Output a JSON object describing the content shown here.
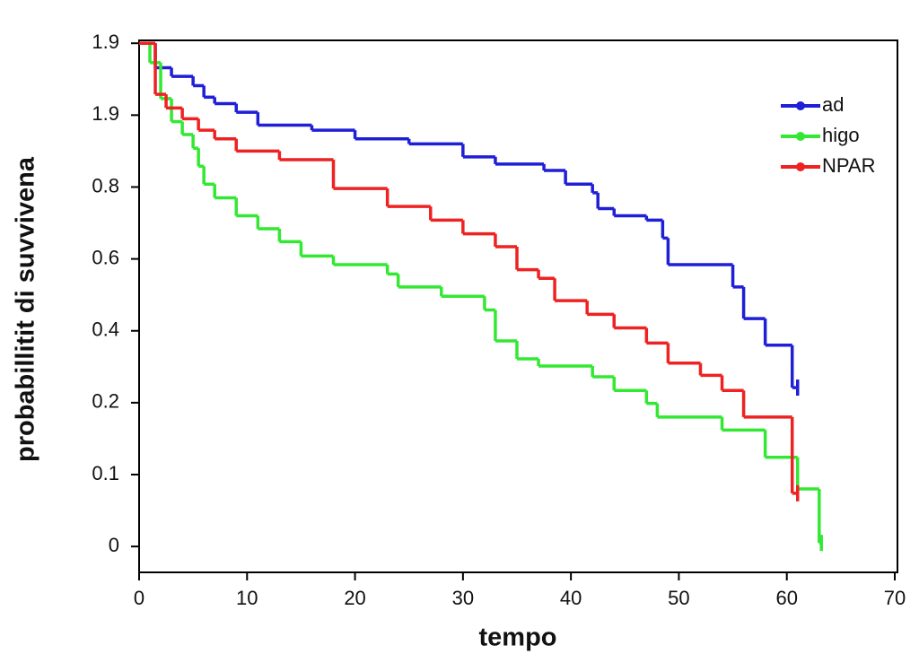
{
  "chart_data": {
    "type": "step",
    "xlabel": "tempo",
    "ylabel": "probabillitit  di suvvivena",
    "xlim": [
      0,
      70.25
    ],
    "ylim": [
      -0.36,
      7.04
    ],
    "xticks": [
      0,
      10,
      20,
      30,
      40,
      50,
      60,
      70
    ],
    "yticks": [
      {
        "value": 0,
        "label": "0"
      },
      {
        "value": 1,
        "label": "0.1"
      },
      {
        "value": 2,
        "label": "0.2"
      },
      {
        "value": 3,
        "label": "0.4"
      },
      {
        "value": 4,
        "label": "0.6"
      },
      {
        "value": 5,
        "label": "0.8"
      },
      {
        "value": 6,
        "label": "1.9"
      },
      {
        "value": 7,
        "label": "1.9"
      }
    ],
    "legend": "upper right",
    "series": [
      {
        "name": "ad",
        "color": "#1f1fd6",
        "x": [
          0,
          1.5,
          3,
          5,
          6,
          7,
          9,
          11,
          16,
          20,
          25,
          30,
          33,
          37.5,
          39.5,
          42,
          42.5,
          44,
          47,
          48.5,
          49,
          55,
          56,
          58,
          60.5,
          61
        ],
        "values": [
          7.0,
          6.66,
          6.54,
          6.41,
          6.25,
          6.16,
          6.04,
          5.86,
          5.79,
          5.67,
          5.6,
          5.42,
          5.32,
          5.23,
          5.04,
          4.92,
          4.7,
          4.6,
          4.54,
          4.29,
          3.92,
          3.61,
          3.17,
          2.8,
          2.21,
          2.21
        ]
      },
      {
        "name": "higo",
        "color": "#33e833",
        "x": [
          0,
          1,
          2,
          3,
          4,
          5,
          5.5,
          6,
          7,
          9,
          11,
          13,
          15,
          18,
          23,
          24,
          28,
          32,
          33,
          35,
          37,
          42,
          44,
          47,
          48,
          54,
          58,
          61,
          63,
          63.2
        ],
        "values": [
          7.0,
          6.73,
          6.23,
          5.91,
          5.73,
          5.54,
          5.29,
          5.04,
          4.85,
          4.6,
          4.42,
          4.24,
          4.04,
          3.92,
          3.79,
          3.61,
          3.48,
          3.29,
          2.86,
          2.61,
          2.51,
          2.36,
          2.17,
          1.99,
          1.8,
          1.62,
          1.24,
          0.8,
          0.05,
          0.05
        ]
      },
      {
        "name": "NPAR",
        "color": "#ee2222",
        "x": [
          0,
          1.5,
          2.5,
          4,
          5.5,
          7,
          9,
          13,
          18,
          23,
          27,
          30,
          33,
          35,
          37,
          38.5,
          41.5,
          44,
          47,
          49,
          52,
          54,
          56,
          60.5,
          61
        ],
        "values": [
          7.0,
          6.29,
          6.1,
          5.95,
          5.79,
          5.67,
          5.5,
          5.38,
          4.98,
          4.73,
          4.54,
          4.35,
          4.17,
          3.85,
          3.73,
          3.42,
          3.23,
          3.04,
          2.83,
          2.55,
          2.38,
          2.17,
          1.8,
          0.74,
          0.74
        ]
      }
    ]
  }
}
